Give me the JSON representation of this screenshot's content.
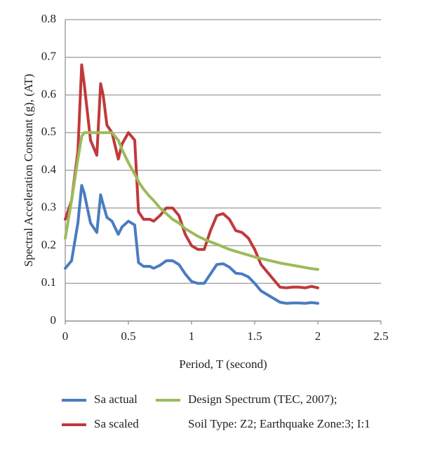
{
  "chart_data": {
    "type": "line",
    "xlabel": "Period, T (second)",
    "ylabel": "Spectral Acceleration Constant (g), (AT)",
    "x": [
      0,
      0.05,
      0.1,
      0.13,
      0.15,
      0.2,
      0.25,
      0.28,
      0.3,
      0.33,
      0.37,
      0.42,
      0.45,
      0.5,
      0.55,
      0.58,
      0.62,
      0.67,
      0.7,
      0.75,
      0.8,
      0.85,
      0.9,
      0.95,
      1.0,
      1.05,
      1.1,
      1.15,
      1.2,
      1.25,
      1.3,
      1.35,
      1.4,
      1.45,
      1.5,
      1.55,
      1.6,
      1.65,
      1.7,
      1.75,
      1.8,
      1.85,
      1.9,
      1.95,
      2.0
    ],
    "series": [
      {
        "name": "Sa actual",
        "color": "#4a7cc0",
        "values": [
          0.14,
          0.16,
          0.26,
          0.36,
          0.34,
          0.26,
          0.235,
          0.335,
          0.31,
          0.275,
          0.265,
          0.23,
          0.25,
          0.265,
          0.255,
          0.155,
          0.145,
          0.145,
          0.14,
          0.148,
          0.16,
          0.16,
          0.15,
          0.125,
          0.105,
          0.1,
          0.1,
          0.125,
          0.15,
          0.152,
          0.143,
          0.127,
          0.125,
          0.117,
          0.1,
          0.08,
          0.07,
          0.06,
          0.05,
          0.047,
          0.048,
          0.048,
          0.047,
          0.049,
          0.047
        ]
      },
      {
        "name": "Sa scaled",
        "color": "#c0393b",
        "values": [
          0.27,
          0.32,
          0.45,
          0.68,
          0.63,
          0.48,
          0.44,
          0.63,
          0.6,
          0.52,
          0.5,
          0.43,
          0.47,
          0.5,
          0.48,
          0.29,
          0.27,
          0.27,
          0.265,
          0.28,
          0.3,
          0.3,
          0.28,
          0.23,
          0.2,
          0.19,
          0.19,
          0.24,
          0.28,
          0.285,
          0.27,
          0.24,
          0.235,
          0.22,
          0.19,
          0.15,
          0.13,
          0.11,
          0.09,
          0.088,
          0.09,
          0.09,
          0.088,
          0.092,
          0.088
        ]
      },
      {
        "name": "Design Spectrum (TEC, 2007);",
        "color": "#9bbb59",
        "values": [
          0.22,
          0.32,
          0.43,
          0.49,
          0.5,
          0.5,
          0.5,
          0.5,
          0.5,
          0.5,
          0.5,
          0.48,
          0.455,
          0.42,
          0.39,
          0.37,
          0.35,
          0.33,
          0.32,
          0.3,
          0.285,
          0.27,
          0.26,
          0.245,
          0.235,
          0.225,
          0.217,
          0.21,
          0.204,
          0.197,
          0.19,
          0.185,
          0.18,
          0.175,
          0.17,
          0.166,
          0.162,
          0.158,
          0.154,
          0.151,
          0.148,
          0.145,
          0.142,
          0.139,
          0.137
        ]
      }
    ],
    "legend_note": "Soil Type: Z2; Earthquake Zone:3; I:1",
    "xlim": [
      0,
      2.5
    ],
    "xticks": [
      0,
      0.5,
      1,
      1.5,
      2,
      2.5
    ],
    "ylim": [
      0,
      0.8
    ],
    "yticks": [
      0,
      0.1,
      0.2,
      0.3,
      0.4,
      0.5,
      0.6,
      0.7,
      0.8
    ],
    "grid": true
  }
}
